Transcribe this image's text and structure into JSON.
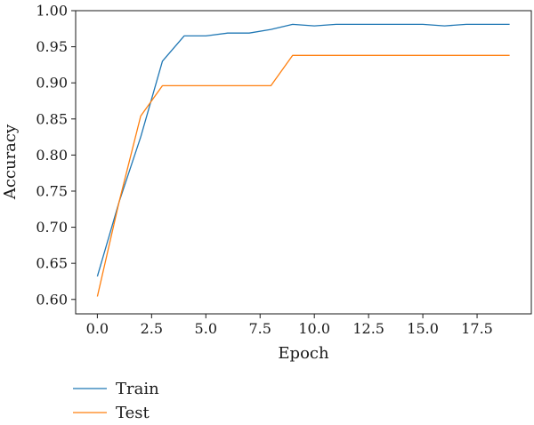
{
  "chart_data": {
    "type": "line",
    "xlabel": "Epoch",
    "ylabel": "Accuracy",
    "xlim": [
      -1,
      20
    ],
    "ylim": [
      0.58,
      1.0
    ],
    "x_ticks": [
      0.0,
      2.5,
      5.0,
      7.5,
      10.0,
      12.5,
      15.0,
      17.5
    ],
    "x_tick_labels": [
      "0.0",
      "2.5",
      "5.0",
      "7.5",
      "10.0",
      "12.5",
      "15.0",
      "17.5"
    ],
    "y_ticks": [
      0.6,
      0.65,
      0.7,
      0.75,
      0.8,
      0.85,
      0.9,
      0.95,
      1.0
    ],
    "y_tick_labels": [
      "0.60",
      "0.65",
      "0.70",
      "0.75",
      "0.80",
      "0.85",
      "0.90",
      "0.95",
      "1.00"
    ],
    "grid": false,
    "legend_position": "below-left",
    "x": [
      0,
      1,
      2,
      3,
      4,
      5,
      6,
      7,
      8,
      9,
      10,
      11,
      12,
      13,
      14,
      15,
      16,
      17,
      18,
      19
    ],
    "series": [
      {
        "name": "Train",
        "color": "#1f77b4",
        "values": [
          0.632,
          0.735,
          0.825,
          0.93,
          0.965,
          0.965,
          0.969,
          0.969,
          0.974,
          0.981,
          0.979,
          0.981,
          0.981,
          0.981,
          0.981,
          0.981,
          0.979,
          0.981,
          0.981,
          0.981
        ]
      },
      {
        "name": "Test",
        "color": "#ff7f0e",
        "values": [
          0.604,
          0.735,
          0.854,
          0.896,
          0.896,
          0.896,
          0.896,
          0.896,
          0.896,
          0.938,
          0.938,
          0.938,
          0.938,
          0.938,
          0.938,
          0.938,
          0.938,
          0.938,
          0.938,
          0.938
        ]
      }
    ]
  }
}
